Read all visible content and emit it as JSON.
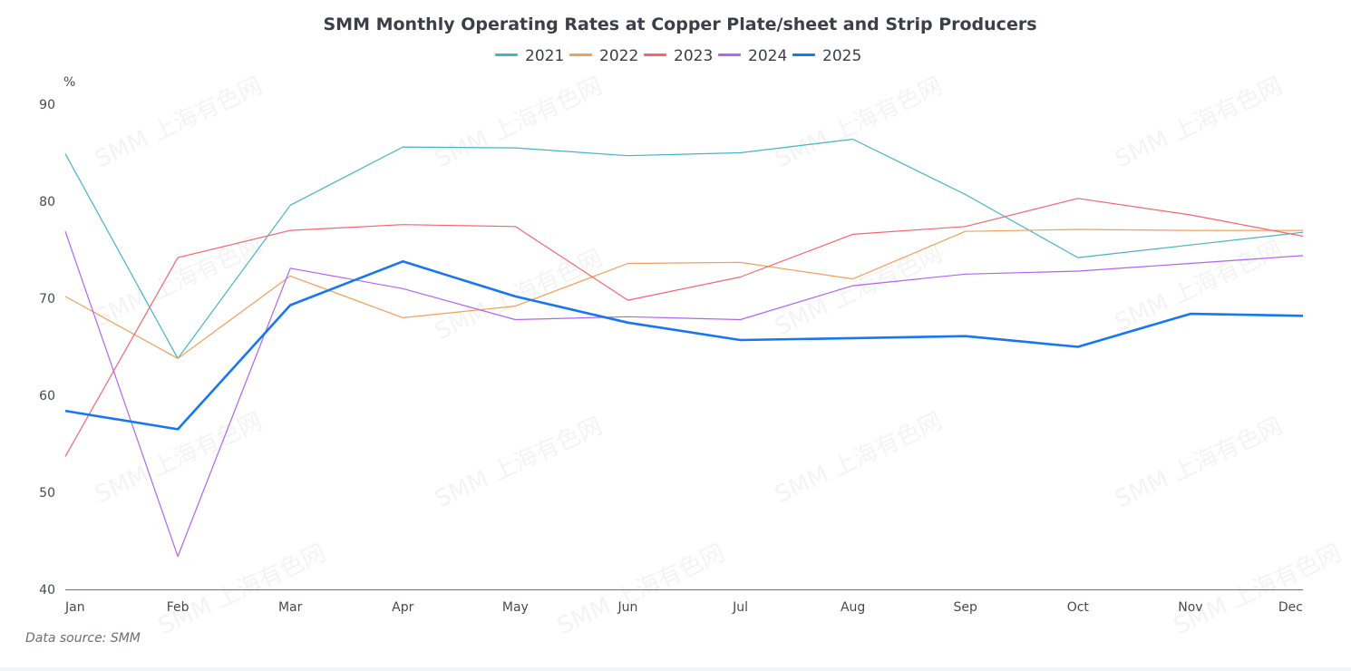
{
  "chart_data": {
    "type": "line",
    "title": "SMM Monthly Operating Rates at Copper Plate/sheet and Strip Producers",
    "ylabel": "%",
    "xlabel": "",
    "ylim": [
      40,
      90
    ],
    "yticks": [
      "40",
      "50",
      "60",
      "70",
      "80",
      "90"
    ],
    "categories": [
      "Jan",
      "Feb",
      "Mar",
      "Apr",
      "May",
      "Jun",
      "Jul",
      "Aug",
      "Sep",
      "Oct",
      "Nov",
      "Dec"
    ],
    "legend_position": "top-center",
    "grid": false,
    "series": [
      {
        "name": "2021",
        "color": "#45b5c4",
        "values": [
          84.9,
          63.8,
          79.6,
          85.6,
          85.5,
          84.7,
          85.0,
          86.4,
          80.7,
          74.2,
          75.5,
          76.8
        ]
      },
      {
        "name": "2022",
        "color": "#f0a059",
        "values": [
          70.2,
          63.8,
          72.3,
          68.0,
          69.2,
          73.6,
          73.7,
          72.0,
          76.9,
          77.1,
          77.0,
          77.0
        ]
      },
      {
        "name": "2023",
        "color": "#f4666f",
        "values": [
          53.7,
          74.2,
          77.0,
          77.6,
          77.4,
          69.8,
          72.2,
          76.6,
          77.4,
          80.3,
          78.6,
          76.4
        ]
      },
      {
        "name": "2024",
        "color": "#b065f0",
        "values": [
          76.9,
          43.4,
          73.1,
          71.0,
          67.8,
          68.1,
          67.8,
          71.3,
          72.5,
          72.8,
          73.6,
          74.4
        ]
      },
      {
        "name": "2025",
        "color": "#1677ee",
        "values": [
          58.4,
          56.5,
          69.3,
          73.8,
          70.2,
          67.5,
          65.7,
          65.9,
          66.1,
          65.0,
          68.4,
          68.2
        ]
      }
    ]
  },
  "watermark": "SMM 上海有色网",
  "source_label": "Data source:  SMM"
}
